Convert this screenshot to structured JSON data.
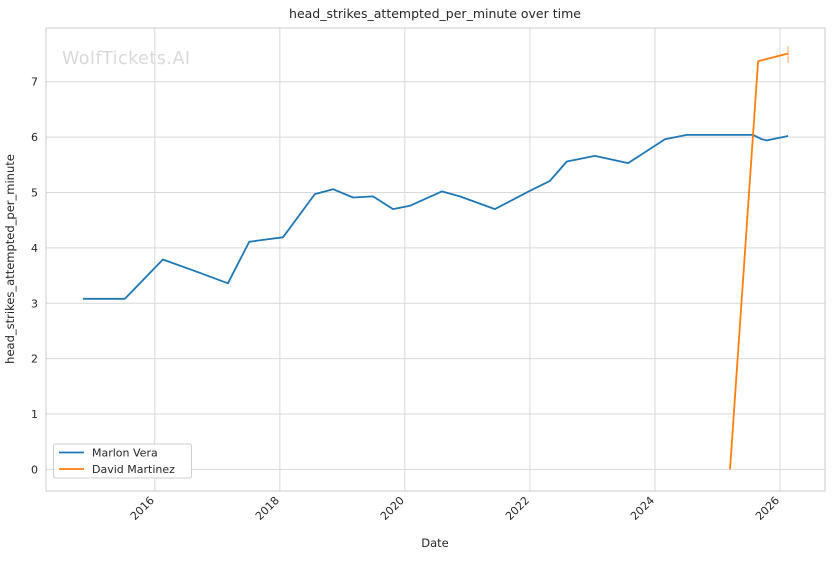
{
  "chart_data": {
    "type": "line",
    "title": "head_strikes_attempted_per_minute over time",
    "xlabel": "Date",
    "ylabel": "head_strikes_attempted_per_minute",
    "watermark": "WolfTickets.AI",
    "grid": true,
    "legend_position": "lower-left",
    "xlim": [
      2014.26,
      2026.72
    ],
    "ylim": [
      -0.39,
      7.97
    ],
    "x_ticks": [
      2016,
      2018,
      2020,
      2022,
      2024,
      2026
    ],
    "y_ticks": [
      0,
      1,
      2,
      3,
      4,
      5,
      6,
      7
    ],
    "series": [
      {
        "name": "Marlon Vera",
        "color": "#1f77b4",
        "x": [
          2014.85,
          2015.1,
          2015.52,
          2016.13,
          2016.72,
          2017.17,
          2017.51,
          2017.76,
          2018.05,
          2018.56,
          2018.85,
          2019.17,
          2019.49,
          2019.81,
          2020.08,
          2020.59,
          2020.88,
          2021.44,
          2022.0,
          2022.32,
          2022.59,
          2023.04,
          2023.57,
          2024.16,
          2024.51,
          2025.0,
          2025.57,
          2025.71,
          2025.79,
          2026.13
        ],
        "y": [
          3.08,
          3.08,
          3.08,
          3.79,
          3.55,
          3.36,
          4.11,
          4.15,
          4.19,
          4.97,
          5.06,
          4.91,
          4.93,
          4.7,
          4.76,
          5.02,
          4.93,
          4.7,
          5.03,
          5.21,
          5.56,
          5.66,
          5.53,
          5.96,
          6.04,
          6.04,
          6.04,
          5.96,
          5.94,
          6.02
        ]
      },
      {
        "name": "David Martinez",
        "color": "#ff7f0e",
        "x": [
          2025.2,
          2025.65,
          2026.13
        ],
        "y": [
          0.0,
          7.37,
          7.51
        ],
        "endcap": {
          "x": 2026.13,
          "y_low": 7.34,
          "y_high": 7.64
        }
      }
    ]
  },
  "colors": {
    "blue": "#1f77b4",
    "orange": "#ff7f0e",
    "grid": "#d9d9d9",
    "spine": "#cccccc",
    "text": "#262626",
    "watermark": "#d9d9d9"
  }
}
